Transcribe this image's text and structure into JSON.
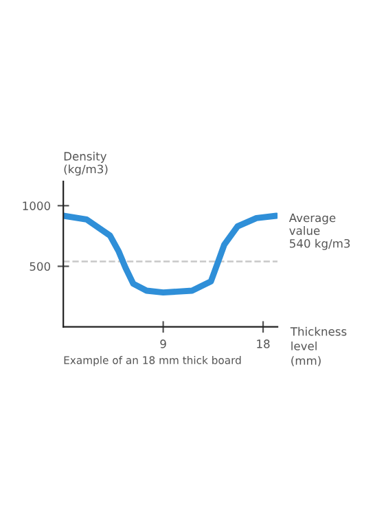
{
  "chart_data": {
    "type": "line",
    "ylabel": "Density\n(kg/m3)",
    "xlabel": "Thickness\nlevel\n(mm)",
    "x": [
      0,
      2.1,
      4.2,
      5.0,
      5.6,
      6.3,
      7.5,
      9,
      11.6,
      13.3,
      13.9,
      14.5,
      15.7,
      17.4,
      19.2
    ],
    "series": [
      {
        "color": "#2f8fd8",
        "values": [
          917,
          886,
          754,
          621,
          489,
          356,
          299,
          284,
          299,
          375,
          526,
          678,
          830,
          898,
          917
        ]
      }
    ],
    "xlim": [
      0,
      19.3
    ],
    "ylim": [
      0,
      1200
    ],
    "xticks": [
      9,
      18
    ],
    "yticks": [
      500,
      1000
    ],
    "ref_lines": [
      {
        "axis": "y",
        "value": 540,
        "label": "Average\nvalue\n540 kg/m3",
        "color": "#c8c8c8",
        "line_style": "dashed"
      }
    ],
    "annotations": [
      "Example of an 18 mm thick board"
    ],
    "grid": false,
    "legend": false,
    "marker": "none",
    "line_style": "solid"
  }
}
